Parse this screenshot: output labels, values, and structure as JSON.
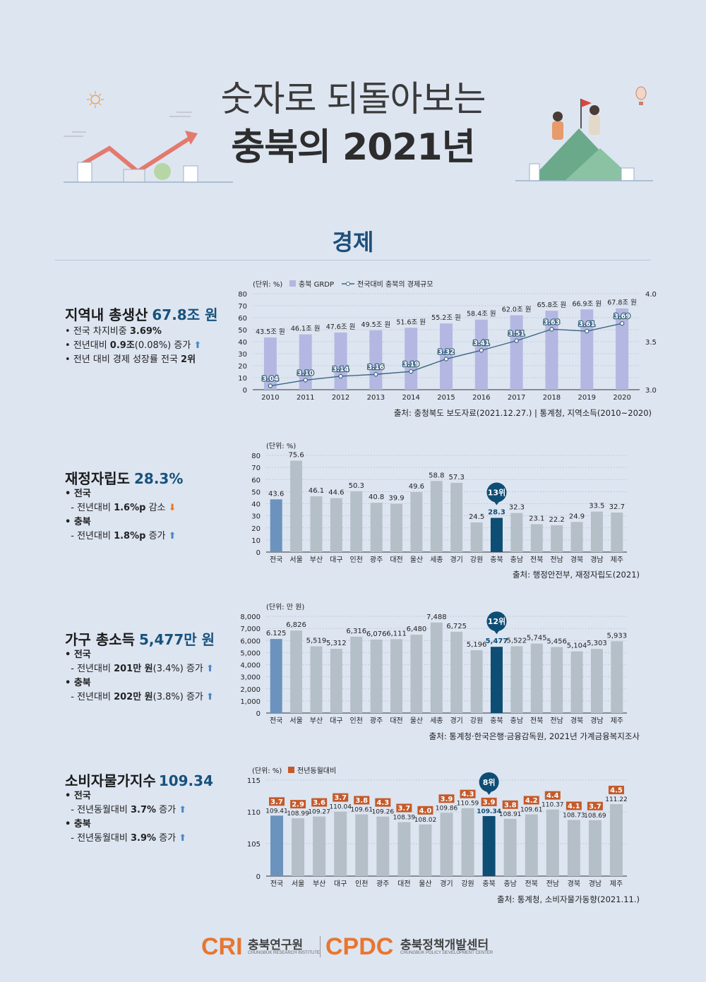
{
  "header": {
    "title_line1": "숫자로 되돌아보는",
    "title_line2": "충북의 2021년"
  },
  "section_title": "경제",
  "blocks": [
    {
      "title": "지역내 총생산",
      "value": "67.8조 원",
      "bullets": [
        {
          "text": "전국 차지비중 ",
          "bold": "3.69%",
          "after": "",
          "arrow": ""
        },
        {
          "text": "전년대비 ",
          "bold": "0.9조",
          "after": "(0.08%) 증가",
          "arrow": "up"
        },
        {
          "text": "전년 대비 경제 성장률 전국 ",
          "bold": "2위",
          "after": "",
          "arrow": ""
        }
      ],
      "source": "출처: 충청북도 보도자료(2021.12.27.) | 통계청, 지역소득(2010~2020)"
    },
    {
      "title": "재정자립도",
      "value": "28.3%",
      "groups": [
        {
          "head": "전국",
          "line_pre": "- 전년대비 ",
          "bold": "1.6%p",
          "after": " 감소",
          "arrow": "down"
        },
        {
          "head": "충북",
          "line_pre": "- 전년대비 ",
          "bold": "1.8%p",
          "after": " 증가",
          "arrow": "up"
        }
      ],
      "source": "출처: 행정안전부, 재정자립도(2021)"
    },
    {
      "title": "가구 총소득",
      "value": "5,477만 원",
      "groups": [
        {
          "head": "전국",
          "line_pre": "- 전년대비 ",
          "bold": "201만 원",
          "after": "(3.4%) 증가",
          "arrow": "up"
        },
        {
          "head": "충북",
          "line_pre": "- 전년대비 ",
          "bold": "202만 원",
          "after": "(3.8%) 증가",
          "arrow": "up"
        }
      ],
      "source": "출처: 통계청·한국은행·금융감독원, 2021년 가계금융복지조사"
    },
    {
      "title": "소비자물가지수",
      "value": "109.34",
      "groups": [
        {
          "head": "전국",
          "line_pre": "- 전년동월대비 ",
          "bold": "3.7%",
          "after": " 증가",
          "arrow": "up"
        },
        {
          "head": "충북",
          "line_pre": "- 전년동월대비 ",
          "bold": "3.9%",
          "after": " 증가",
          "arrow": "up"
        }
      ],
      "source": "출처: 통계청, 소비자물가동향(2021.11.)"
    }
  ],
  "footer": {
    "cri_logo": "CRI",
    "cri_name": "충북연구원",
    "cri_en": "CHUNGBUK RESEARCH INSTITUTE",
    "cpdc_logo": "CPDC",
    "cpdc_name": "충북정책개발센터",
    "cpdc_en": "CHUNGBUK POLICY DEVELOPMENT CENTER"
  },
  "colors": {
    "grdp_bar": "#b3b7e1",
    "line": "#3d6680",
    "national_bar": "#6b93bd",
    "chungbuk_bar": "#0e4d74",
    "other_bar": "#b5bfc8",
    "cpi_badge": "#c45a2a",
    "rank_badge": "#0e4d74",
    "accent_orange": "#e8762f"
  },
  "chart_data": [
    {
      "type": "bar",
      "unit_label": "(단위: %)",
      "legend": [
        "충북 GRDP",
        "전국대비 충북의 경제규모"
      ],
      "categories": [
        "2010",
        "2011",
        "2012",
        "2013",
        "2014",
        "2015",
        "2016",
        "2017",
        "2018",
        "2019",
        "2020"
      ],
      "series": [
        {
          "name": "충북 GRDP",
          "type": "bar",
          "values": [
            43.5,
            46.1,
            47.6,
            49.5,
            51.6,
            55.2,
            58.4,
            62.0,
            65.8,
            66.9,
            67.8
          ],
          "labels": [
            "43.5조 원",
            "46.1조 원",
            "47.6조 원",
            "49.5조 원",
            "51.6조 원",
            "55.2조 원",
            "58.4조 원",
            "62.0조 원",
            "65.8조 원",
            "66.9조 원",
            "67.8조 원"
          ]
        },
        {
          "name": "전국대비 충북의 경제규모",
          "type": "line",
          "axis": "right",
          "values": [
            3.04,
            3.1,
            3.14,
            3.16,
            3.19,
            3.32,
            3.41,
            3.51,
            3.63,
            3.61,
            3.69
          ]
        }
      ],
      "ylim": [
        0,
        80
      ],
      "yticks": [
        0,
        10,
        20,
        30,
        40,
        50,
        60,
        70,
        80
      ],
      "y2lim": [
        3.0,
        4.0
      ],
      "y2ticks": [
        "3.0",
        "3.5",
        "4.0"
      ],
      "grid": "horizontal dashed",
      "legend_position": "top-left"
    },
    {
      "type": "bar",
      "unit_label": "(단위: %)",
      "categories": [
        "전국",
        "서울",
        "부산",
        "대구",
        "인천",
        "광주",
        "대전",
        "울산",
        "세종",
        "경기",
        "강원",
        "충북",
        "충남",
        "전북",
        "전남",
        "경북",
        "경남",
        "제주"
      ],
      "values": [
        43.6,
        75.6,
        46.1,
        44.6,
        50.3,
        40.8,
        39.9,
        49.6,
        58.8,
        57.3,
        24.5,
        28.3,
        32.3,
        23.1,
        22.2,
        24.9,
        33.5,
        32.7
      ],
      "ylim": [
        0,
        80
      ],
      "yticks": [
        0,
        10,
        20,
        30,
        40,
        50,
        60,
        70,
        80
      ],
      "highlight": "충북",
      "rank_badge": "13위"
    },
    {
      "type": "bar",
      "unit_label": "(단위: 만 원)",
      "categories": [
        "전국",
        "서울",
        "부산",
        "대구",
        "인천",
        "광주",
        "대전",
        "울산",
        "세종",
        "경기",
        "강원",
        "충북",
        "충남",
        "전북",
        "전남",
        "경북",
        "경남",
        "제주"
      ],
      "values": [
        6125,
        6826,
        5519,
        5312,
        6316,
        6076,
        6111,
        6480,
        7488,
        6725,
        5196,
        5477,
        5522,
        5745,
        5456,
        5104,
        5303,
        5933
      ],
      "labels": [
        "6.125",
        "6,826",
        "5,519",
        "5,312",
        "6,316",
        "6,076",
        "6,111",
        "6,480",
        "7,488",
        "6,725",
        "5,196",
        "5,477",
        "5,522",
        "5,745",
        "5,456",
        "5,104",
        "5,303",
        "5,933"
      ],
      "ylim": [
        0,
        8000
      ],
      "yticks": [
        "0",
        "1,000",
        "2,000",
        "3,000",
        "4,000",
        "5,000",
        "6,000",
        "7,000",
        "8,000"
      ],
      "highlight": "충북",
      "rank_badge": "12위"
    },
    {
      "type": "bar",
      "unit_label": "(단위: %)",
      "legend": [
        "전년동월대비"
      ],
      "categories": [
        "전국",
        "서울",
        "부산",
        "대구",
        "인천",
        "광주",
        "대전",
        "울산",
        "경기",
        "강원",
        "충북",
        "충남",
        "전북",
        "전남",
        "경북",
        "경남",
        "제주"
      ],
      "values": [
        109.41,
        108.99,
        109.27,
        110.04,
        109.61,
        109.26,
        108.39,
        108.02,
        109.86,
        110.59,
        109.34,
        108.91,
        109.61,
        110.37,
        108.73,
        108.69,
        111.22
      ],
      "yoy": [
        3.7,
        2.9,
        3.6,
        3.7,
        3.8,
        4.3,
        3.7,
        4.0,
        3.9,
        4.3,
        3.9,
        3.8,
        4.2,
        4.4,
        4.1,
        3.7,
        4.5
      ],
      "yoy_labels": [
        "3.7",
        "2.9",
        "3.6",
        "3.7",
        "3.8",
        "4.3",
        "3.7",
        "4.0",
        "3.9",
        "4.3",
        "3.9",
        "3.8",
        "4.2",
        "4.4",
        "4.1",
        "3.7",
        "4.5"
      ],
      "yticks": [
        "0",
        "105",
        "110",
        "115"
      ],
      "axis_break": "0 to 100",
      "highlight": "충북",
      "rank_badge": "8위"
    }
  ]
}
